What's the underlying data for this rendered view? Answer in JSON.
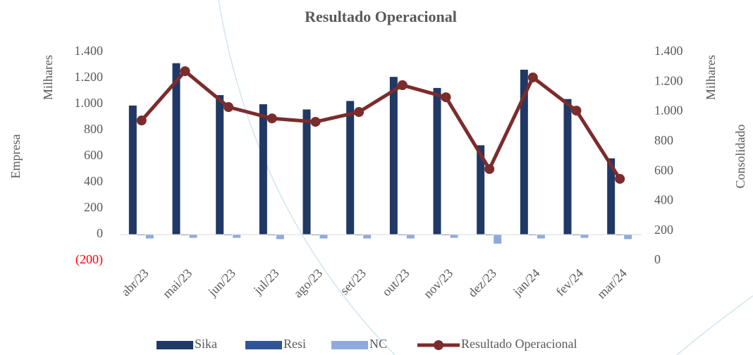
{
  "chart_data": {
    "type": "bar",
    "title": "Resultado Operacional",
    "categories": [
      "abr/23",
      "mai/23",
      "jun/23",
      "jul/23",
      "ago/23",
      "set/23",
      "out/23",
      "nov/23",
      "dez/23",
      "jan/24",
      "fev/24",
      "mar/24"
    ],
    "series": [
      {
        "name": "Sika",
        "color": "#203864",
        "values": [
          990,
          1315,
          1070,
          1000,
          960,
          1025,
          1210,
          1125,
          685,
          1265,
          1040,
          585
        ]
      },
      {
        "name": "Resi",
        "color": "#2f5597",
        "values": [
          -5,
          -5,
          -5,
          -5,
          -5,
          -5,
          -5,
          -5,
          -5,
          -5,
          -5,
          -5
        ]
      },
      {
        "name": "NC",
        "color": "#8faadc",
        "values": [
          -30,
          -25,
          -25,
          -35,
          -30,
          -30,
          -30,
          -25,
          -70,
          -30,
          -25,
          -35
        ]
      },
      {
        "name": "Resultado Operacional",
        "type": "line",
        "axis": "y2",
        "color": "#7b2c2c",
        "values": [
          941,
          1272,
          1031,
          955,
          932,
          998,
          1178,
          1097,
          615,
          1230,
          1007,
          549
        ]
      }
    ],
    "ylim": [
      -200,
      1400
    ],
    "yticks": [
      {
        "value": -200,
        "label": "(200)"
      },
      0,
      200,
      400,
      600,
      800,
      {
        "value": 1000,
        "label": "1.000"
      },
      {
        "value": 1200,
        "label": "1.200"
      },
      {
        "value": 1400,
        "label": "1.400"
      }
    ],
    "y2lim": [
      0,
      1400
    ],
    "y2ticks": [
      0,
      200,
      400,
      600,
      800,
      {
        "value": 1000,
        "label": "1.000"
      },
      {
        "value": 1200,
        "label": "1.200"
      },
      {
        "value": 1400,
        "label": "1.400"
      }
    ],
    "y_label": "Empresa",
    "y_unit": "Milhares",
    "y2_label": "Consolidado",
    "y2_unit": "Milhares",
    "negative_tick_color": "#ff0000",
    "legend": "bottom"
  }
}
